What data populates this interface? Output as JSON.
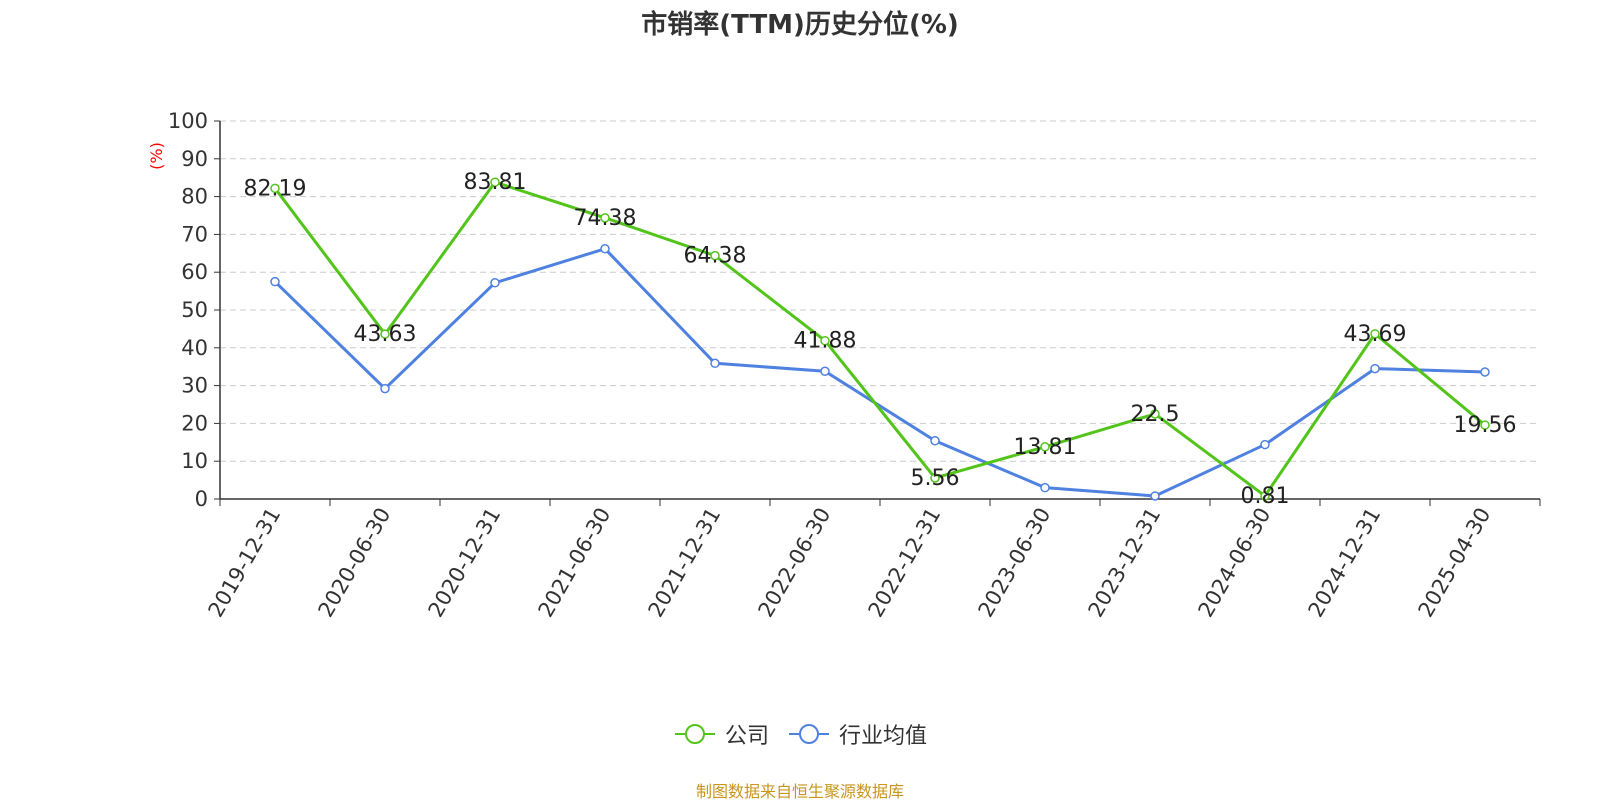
{
  "chart_data": {
    "type": "line",
    "title": "市销率(TTM)历史分位(%)",
    "ylabel": "(%)",
    "ylim": [
      0,
      100
    ],
    "yticks": [
      0,
      10,
      20,
      30,
      40,
      50,
      60,
      70,
      80,
      90,
      100
    ],
    "grid": true,
    "legend_position": "bottom",
    "categories": [
      "2019-12-31",
      "2020-06-30",
      "2020-12-31",
      "2021-06-30",
      "2021-12-31",
      "2022-06-30",
      "2022-12-31",
      "2023-06-30",
      "2023-12-31",
      "2024-06-30",
      "2024-12-31",
      "2025-04-30"
    ],
    "series": [
      {
        "name": "公司",
        "color": "#52c41a",
        "show_labels": true,
        "values": [
          82.19,
          43.63,
          83.81,
          74.38,
          64.38,
          41.88,
          5.56,
          13.81,
          22.5,
          0.81,
          43.69,
          19.56
        ],
        "labels": [
          "82.19",
          "43.63",
          "83.81",
          "74.38",
          "64.38",
          "41.88",
          "5.56",
          "13.81",
          "22.5",
          "0.81",
          "43.69",
          "19.56"
        ]
      },
      {
        "name": "行业均值",
        "color": "#4f81e0",
        "show_labels": false,
        "values": [
          57.5,
          29.2,
          57.2,
          66.2,
          35.9,
          33.8,
          15.4,
          3.0,
          0.8,
          14.4,
          34.5,
          33.6
        ]
      }
    ]
  },
  "source_note": "制图数据来自恒生聚源数据库",
  "colors": {
    "axis_label": "#ff0000",
    "grid": "#cccccc",
    "text": "#333333",
    "source": "#c8961e"
  }
}
